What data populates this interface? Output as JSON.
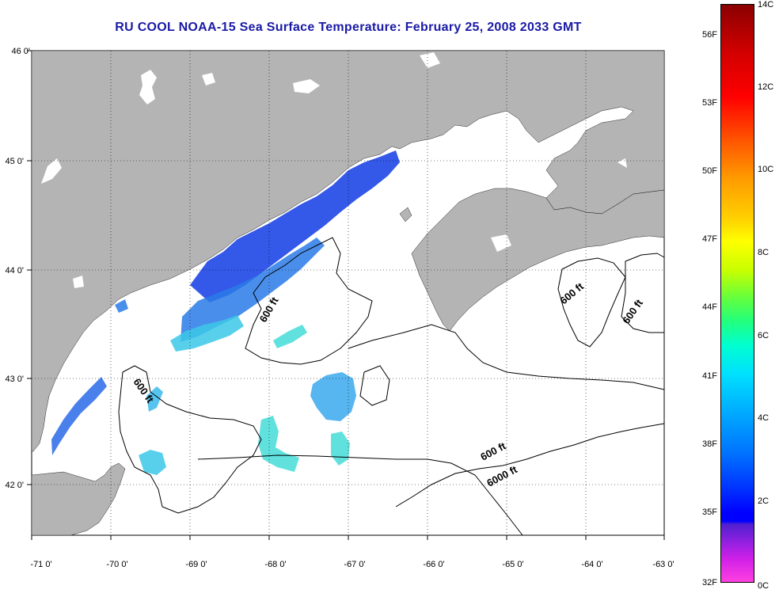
{
  "title": "RU COOL  NOAA-15  Sea Surface Temperature:  February 25, 2008 2033 GMT",
  "axes": {
    "x_ticks": [
      "-71 0'",
      "-70 0'",
      "-69 0'",
      "-68 0'",
      "-67 0'",
      "-66 0'",
      "-65 0'",
      "-64 0'",
      "-63 0'"
    ],
    "y_ticks": [
      "46 0'",
      "45 0'",
      "44 0'",
      "43 0'",
      "42 0'"
    ]
  },
  "contours": {
    "labels": [
      "600 ft",
      "600 ft",
      "600 ft",
      "600 ft",
      "600 ft",
      "6000 ft"
    ]
  },
  "colorbar": {
    "fahrenheit": [
      "56F",
      "53F",
      "50F",
      "47F",
      "44F",
      "41F",
      "38F",
      "35F",
      "32F"
    ],
    "celsius": [
      "14C",
      "12C",
      "10C",
      "8C",
      "6C",
      "4C",
      "2C",
      "0C"
    ]
  },
  "colors": {
    "land": "#b4b4b4",
    "title": "#1a1aa6",
    "sst_cold": "#1e46e6",
    "sst_mid": "#2aa0f0",
    "sst_warm": "#40e0d8"
  }
}
